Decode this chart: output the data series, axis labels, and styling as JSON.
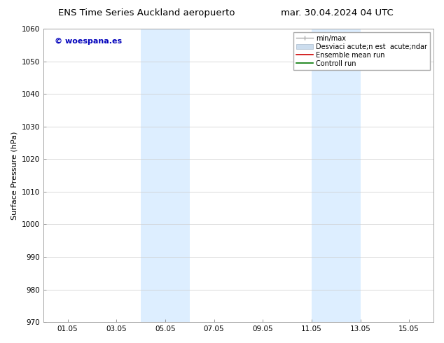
{
  "title_left": "ENS Time Series Auckland aeropuerto",
  "title_right": "mar. 30.04.2024 04 UTC",
  "ylabel": "Surface Pressure (hPa)",
  "ylim": [
    970,
    1060
  ],
  "yticks": [
    970,
    980,
    990,
    1000,
    1010,
    1020,
    1030,
    1040,
    1050,
    1060
  ],
  "xtick_labels": [
    "01.05",
    "03.05",
    "05.05",
    "07.05",
    "09.05",
    "11.05",
    "13.05",
    "15.05"
  ],
  "xtick_positions": [
    1,
    3,
    5,
    7,
    9,
    11,
    13,
    15
  ],
  "xlim": [
    0,
    16
  ],
  "shaded_regions": [
    {
      "xmin": 4.0,
      "xmax": 6.0,
      "color": "#ddeeff"
    },
    {
      "xmin": 11.0,
      "xmax": 13.0,
      "color": "#ddeeff"
    }
  ],
  "watermark_text": "© woespana.es",
  "watermark_color": "#0000bb",
  "legend_labels": [
    "min/max",
    "Desviaci acute;n est  acute;ndar",
    "Ensemble mean run",
    "Controll run"
  ],
  "legend_colors_line": [
    "#aaaaaa",
    "#ccddee",
    "#cc0000",
    "#007700"
  ],
  "bg_color": "#ffffff",
  "grid_color": "#cccccc",
  "title_fontsize": 9.5,
  "tick_fontsize": 7.5,
  "ylabel_fontsize": 8,
  "watermark_fontsize": 8,
  "legend_fontsize": 7
}
